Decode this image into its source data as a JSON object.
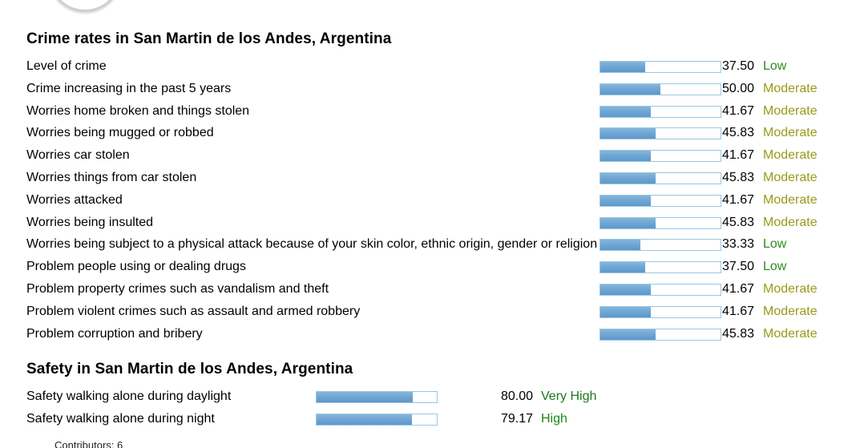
{
  "crime": {
    "title": "Crime rates in San Martin de los Andes, Argentina",
    "rows": [
      {
        "label": "Level of crime",
        "value": "37.50",
        "level": "Low",
        "fraction": 0.375
      },
      {
        "label": "Crime increasing in the past 5 years",
        "value": "50.00",
        "level": "Moderate",
        "fraction": 0.5
      },
      {
        "label": "Worries home broken and things stolen",
        "value": "41.67",
        "level": "Moderate",
        "fraction": 0.4167
      },
      {
        "label": "Worries being mugged or robbed",
        "value": "45.83",
        "level": "Moderate",
        "fraction": 0.4583
      },
      {
        "label": "Worries car stolen",
        "value": "41.67",
        "level": "Moderate",
        "fraction": 0.4167
      },
      {
        "label": "Worries things from car stolen",
        "value": "45.83",
        "level": "Moderate",
        "fraction": 0.4583
      },
      {
        "label": "Worries attacked",
        "value": "41.67",
        "level": "Moderate",
        "fraction": 0.4167
      },
      {
        "label": "Worries being insulted",
        "value": "45.83",
        "level": "Moderate",
        "fraction": 0.4583
      },
      {
        "label": "Worries being subject to a physical attack because of your skin color, ethnic origin, gender or religion",
        "value": "33.33",
        "level": "Low",
        "fraction": 0.3333
      },
      {
        "label": "Problem people using or dealing drugs",
        "value": "37.50",
        "level": "Low",
        "fraction": 0.375
      },
      {
        "label": "Problem property crimes such as vandalism and theft",
        "value": "41.67",
        "level": "Moderate",
        "fraction": 0.4167
      },
      {
        "label": "Problem violent crimes such as assault and armed robbery",
        "value": "41.67",
        "level": "Moderate",
        "fraction": 0.4167
      },
      {
        "label": "Problem corruption and bribery",
        "value": "45.83",
        "level": "Moderate",
        "fraction": 0.4583
      }
    ]
  },
  "safety": {
    "title": "Safety in San Martin de los Andes, Argentina",
    "rows": [
      {
        "label": "Safety walking alone during daylight",
        "value": "80.00",
        "level": "Very High",
        "fraction": 0.8
      },
      {
        "label": "Safety walking alone during night",
        "value": "79.17",
        "level": "High",
        "fraction": 0.7917
      }
    ]
  },
  "contributors": "Contributors: 6",
  "colors": {
    "bar_fill": "#6ea5d3",
    "bar_border": "#9ac6e0",
    "low": "#2e8b1e",
    "moderate": "#9a9a1a",
    "high": "#1a8a1a",
    "very_high": "#1a7a1a"
  }
}
